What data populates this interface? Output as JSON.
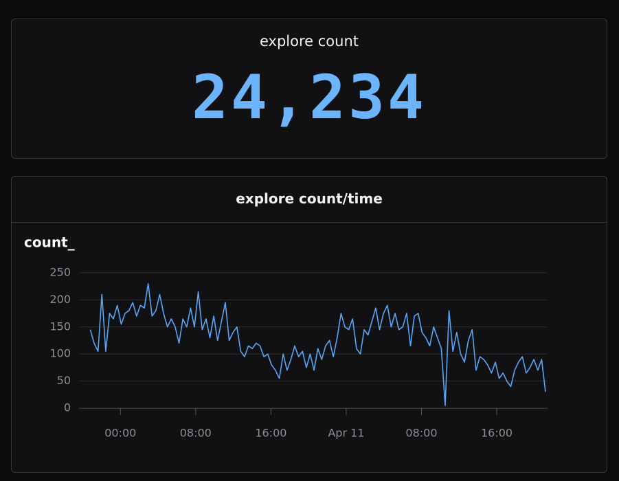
{
  "panels": [
    {
      "title": "explore count",
      "value": "24,234",
      "value_color": "#6cb4fb"
    },
    {
      "title": "explore count/time",
      "chart_data": {
        "type": "line",
        "ylabel": "count_",
        "color": "#5aa5f5",
        "grid": true,
        "xlim": [
          -4.4,
          45.4
        ],
        "xticks": [
          {
            "value": 0,
            "label": "00:00"
          },
          {
            "value": 8,
            "label": "08:00"
          },
          {
            "value": 16,
            "label": "16:00"
          },
          {
            "value": 24,
            "label": "Apr 11"
          },
          {
            "value": 32,
            "label": "08:00"
          },
          {
            "value": 40,
            "label": "16:00"
          }
        ],
        "ylim": [
          0,
          250
        ],
        "yticks": [
          0,
          50,
          100,
          150,
          200,
          250
        ],
        "x": [
          -3.2,
          -2.79,
          -2.38,
          -1.97,
          -1.56,
          -1.15,
          -0.74,
          -0.33,
          0.08,
          0.49,
          0.9,
          1.31,
          1.72,
          2.13,
          2.54,
          2.95,
          3.36,
          3.77,
          4.18,
          4.59,
          5,
          5.41,
          5.82,
          6.23,
          6.64,
          7.05,
          7.46,
          7.87,
          8.28,
          8.69,
          9.1,
          9.51,
          9.92,
          10.33,
          10.74,
          11.15,
          11.56,
          11.97,
          12.38,
          12.79,
          13.2,
          13.61,
          14.02,
          14.43,
          14.84,
          15.25,
          15.66,
          16.07,
          16.48,
          16.89,
          17.3,
          17.71,
          18.12,
          18.53,
          18.94,
          19.35,
          19.76,
          20.17,
          20.58,
          20.99,
          21.4,
          21.81,
          22.22,
          22.63,
          23.04,
          23.45,
          23.86,
          24.27,
          24.68,
          25.09,
          25.5,
          25.91,
          26.32,
          26.73,
          27.14,
          27.55,
          27.96,
          28.37,
          28.78,
          29.19,
          29.6,
          30.01,
          30.42,
          30.83,
          31.24,
          31.65,
          32.06,
          32.47,
          32.88,
          33.29,
          33.7,
          34.11,
          34.52,
          34.93,
          35.34,
          35.75,
          36.16,
          36.57,
          36.98,
          37.39,
          37.8,
          38.21,
          38.62,
          39.03,
          39.44,
          39.85,
          40.26,
          40.67,
          41.08,
          41.49,
          41.9,
          42.31,
          42.72,
          43.13,
          43.54,
          43.95,
          44.36,
          44.77,
          45.18
        ],
        "values": [
          145,
          120,
          105,
          210,
          105,
          175,
          165,
          190,
          155,
          175,
          180,
          195,
          170,
          190,
          185,
          230,
          170,
          180,
          210,
          175,
          150,
          165,
          150,
          120,
          165,
          150,
          185,
          150,
          215,
          145,
          165,
          130,
          170,
          125,
          160,
          195,
          125,
          140,
          150,
          105,
          95,
          115,
          110,
          120,
          115,
          95,
          100,
          80,
          70,
          55,
          100,
          70,
          90,
          115,
          95,
          105,
          75,
          100,
          70,
          110,
          90,
          115,
          125,
          95,
          130,
          175,
          150,
          145,
          165,
          110,
          100,
          145,
          135,
          160,
          185,
          145,
          175,
          190,
          150,
          175,
          145,
          150,
          175,
          115,
          170,
          175,
          140,
          130,
          115,
          150,
          130,
          110,
          5,
          180,
          105,
          140,
          100,
          85,
          125,
          145,
          70,
          95,
          90,
          80,
          65,
          85,
          55,
          65,
          50,
          40,
          70,
          85,
          95,
          65,
          75,
          90,
          70,
          90,
          30
        ]
      }
    }
  ]
}
